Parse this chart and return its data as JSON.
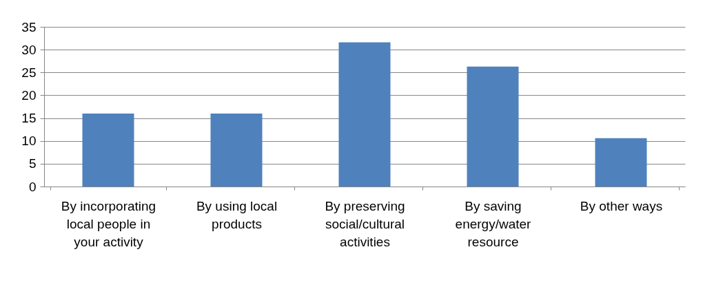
{
  "chart_data": {
    "type": "bar",
    "categories": [
      "By incorporating local people in your activity",
      "By using local products",
      "By preserving social/cultural activities",
      "By saving energy/water resource",
      "By other ways"
    ],
    "values": [
      16,
      16,
      31.6,
      26.3,
      10.6
    ],
    "color": "#4f81bd",
    "ylim": [
      0,
      35
    ],
    "yticks": [
      0,
      5,
      10,
      15,
      20,
      25,
      30,
      35
    ],
    "grid": "y"
  }
}
